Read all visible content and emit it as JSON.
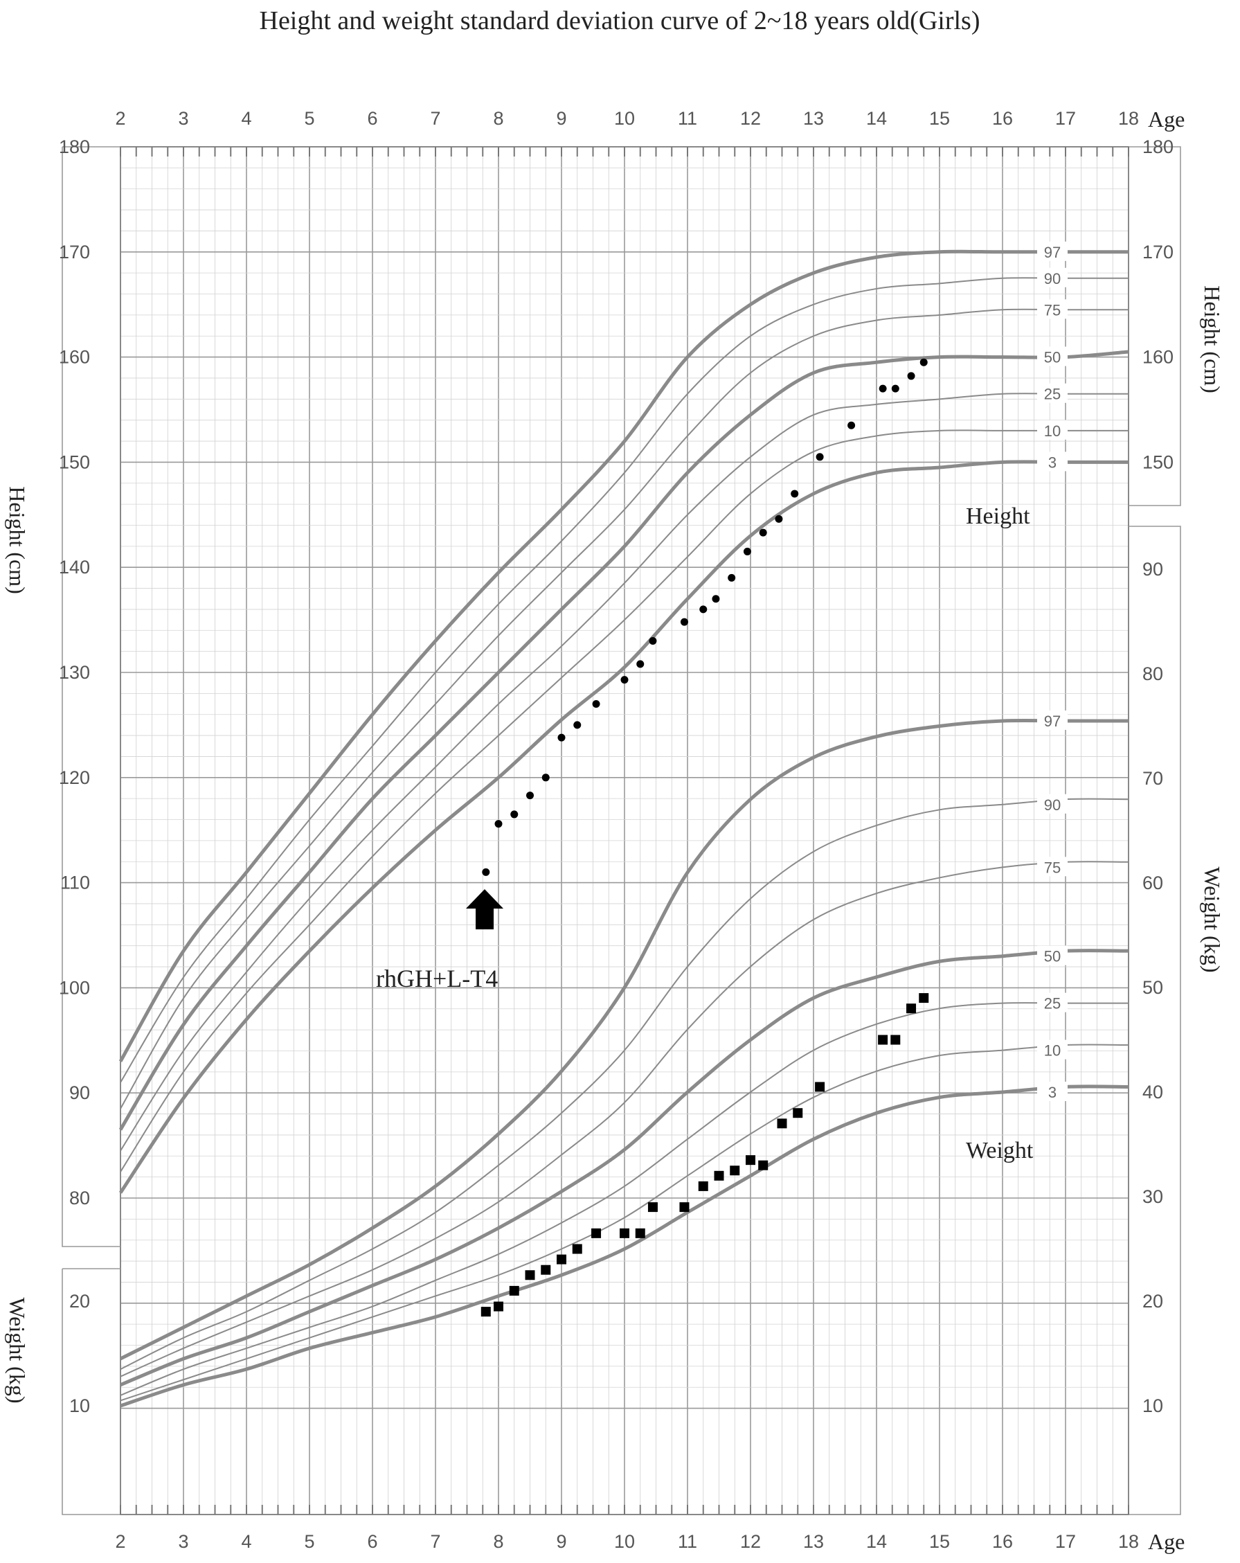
{
  "chart_data": {
    "type": "scatter",
    "title": "Height and weight standard deviation curve of 2~18 years old(Girls)",
    "x_axis": {
      "label": "Age",
      "range": [
        2,
        18
      ],
      "ticks": [
        "2",
        "3",
        "4",
        "5",
        "6",
        "7",
        "8",
        "9",
        "10",
        "11",
        "12",
        "13",
        "14",
        "15",
        "16",
        "17",
        "18"
      ]
    },
    "left_axis_height": {
      "label": "Height (cm)",
      "ticks": [
        "80",
        "90",
        "100",
        "110",
        "120",
        "130",
        "140",
        "150",
        "160",
        "170",
        "180"
      ]
    },
    "left_axis_weight": {
      "label": "Weight (kg)",
      "ticks": [
        "10",
        "20"
      ]
    },
    "right_axis_height": {
      "label": "Height (cm)",
      "ticks": [
        "150",
        "160",
        "170",
        "180"
      ]
    },
    "right_axis_weight": {
      "label": "Weight (kg)",
      "ticks": [
        "10",
        "20",
        "30",
        "40",
        "50",
        "60",
        "70",
        "80",
        "90"
      ]
    },
    "grid": true,
    "section_labels": {
      "height": "Height",
      "weight": "Weight"
    },
    "annotation": {
      "text": "rhGH+L-T4",
      "age": 7.8
    },
    "height_percentiles": [
      {
        "name": "97",
        "ages": [
          2,
          3,
          4,
          5,
          6,
          7,
          8,
          9,
          10,
          11,
          12,
          13,
          14,
          15,
          16,
          17,
          18
        ],
        "values": [
          93,
          103.5,
          111,
          118.5,
          126,
          133,
          139.5,
          145.5,
          152,
          160,
          165,
          168,
          169.5,
          170,
          170,
          170,
          170
        ]
      },
      {
        "name": "90",
        "ages": [
          2,
          3,
          4,
          5,
          6,
          7,
          8,
          9,
          10,
          11,
          12,
          13,
          14,
          15,
          16,
          17,
          18
        ],
        "values": [
          91,
          101,
          108.5,
          116,
          123,
          130,
          136.5,
          142.5,
          149,
          156.5,
          162,
          165,
          166.5,
          167,
          167.5,
          167.5,
          167.5
        ]
      },
      {
        "name": "75",
        "ages": [
          2,
          3,
          4,
          5,
          6,
          7,
          8,
          9,
          10,
          11,
          12,
          13,
          14,
          15,
          16,
          17,
          18
        ],
        "values": [
          88.5,
          99,
          106.5,
          113.5,
          120.5,
          127,
          133.5,
          139.5,
          145.5,
          152.5,
          158.5,
          162,
          163.5,
          164,
          164.5,
          164.5,
          164.5
        ]
      },
      {
        "name": "50",
        "ages": [
          2,
          3,
          4,
          5,
          6,
          7,
          8,
          9,
          10,
          11,
          12,
          13,
          14,
          15,
          16,
          17,
          18
        ],
        "values": [
          86.5,
          96.5,
          104,
          111,
          118,
          124,
          130,
          136,
          142,
          149,
          154.5,
          158.5,
          159.5,
          160,
          160,
          160,
          160.5
        ]
      },
      {
        "name": "25",
        "ages": [
          2,
          3,
          4,
          5,
          6,
          7,
          8,
          9,
          10,
          11,
          12,
          13,
          14,
          15,
          16,
          17,
          18
        ],
        "values": [
          84.5,
          94,
          101.5,
          108.5,
          115,
          121,
          127,
          132.5,
          138.5,
          145,
          150.5,
          154.5,
          155.5,
          156,
          156.5,
          156.5,
          156.5
        ]
      },
      {
        "name": "10",
        "ages": [
          2,
          3,
          4,
          5,
          6,
          7,
          8,
          9,
          10,
          11,
          12,
          13,
          14,
          15,
          16,
          17,
          18
        ],
        "values": [
          82.5,
          92,
          99.5,
          106,
          112.5,
          118.5,
          124,
          129.5,
          135,
          141,
          147,
          151,
          152.5,
          153,
          153,
          153,
          153
        ]
      },
      {
        "name": "3",
        "ages": [
          2,
          3,
          4,
          5,
          6,
          7,
          8,
          9,
          10,
          11,
          12,
          13,
          14,
          15,
          16,
          17,
          18
        ],
        "values": [
          80.5,
          89.5,
          97,
          103.5,
          109.5,
          115,
          120,
          125.5,
          130.5,
          137,
          143,
          147,
          149,
          149.5,
          150,
          150,
          150
        ]
      }
    ],
    "weight_percentiles": [
      {
        "name": "97",
        "ages": [
          2,
          3,
          4,
          5,
          6,
          7,
          8,
          9,
          10,
          11,
          12,
          13,
          14,
          15,
          16,
          17,
          18
        ],
        "values": [
          14.5,
          17.5,
          20.5,
          23.5,
          27,
          31,
          36,
          42,
          50,
          61,
          68,
          72,
          74,
          75,
          75.5,
          75.5,
          75.5
        ]
      },
      {
        "name": "90",
        "ages": [
          2,
          3,
          4,
          5,
          6,
          7,
          8,
          9,
          10,
          11,
          12,
          13,
          14,
          15,
          16,
          17,
          18
        ],
        "values": [
          13.5,
          16.5,
          19,
          22,
          25,
          28.5,
          33,
          38,
          44,
          52,
          58.5,
          63,
          65.5,
          67,
          67.5,
          68,
          68
        ]
      },
      {
        "name": "75",
        "ages": [
          2,
          3,
          4,
          5,
          6,
          7,
          8,
          9,
          10,
          11,
          12,
          13,
          14,
          15,
          16,
          17,
          18
        ],
        "values": [
          12.8,
          15.5,
          18,
          20.5,
          23,
          26,
          29.5,
          34,
          39,
          46,
          52,
          56.5,
          59,
          60.5,
          61.5,
          62,
          62
        ]
      },
      {
        "name": "50",
        "ages": [
          2,
          3,
          4,
          5,
          6,
          7,
          8,
          9,
          10,
          11,
          12,
          13,
          14,
          15,
          16,
          17,
          18
        ],
        "values": [
          12,
          14.5,
          16.5,
          19,
          21.5,
          24,
          27,
          30.5,
          34.5,
          40,
          45,
          49,
          51,
          52.5,
          53,
          53.5,
          53.5
        ]
      },
      {
        "name": "25",
        "ages": [
          2,
          3,
          4,
          5,
          6,
          7,
          8,
          9,
          10,
          11,
          12,
          13,
          14,
          15,
          16,
          17,
          18
        ],
        "values": [
          11,
          13.5,
          15.5,
          17.5,
          19.5,
          22,
          24.5,
          27.5,
          31,
          35.5,
          40,
          44,
          46.5,
          48,
          48.5,
          48.5,
          48.5
        ]
      },
      {
        "name": "10",
        "ages": [
          2,
          3,
          4,
          5,
          6,
          7,
          8,
          9,
          10,
          11,
          12,
          13,
          14,
          15,
          16,
          17,
          18
        ],
        "values": [
          10.5,
          12.5,
          14.5,
          16.5,
          18.5,
          20.5,
          22.5,
          25,
          28,
          32,
          36,
          39.5,
          42,
          43.5,
          44,
          44.5,
          44.5
        ]
      },
      {
        "name": "3",
        "ages": [
          2,
          3,
          4,
          5,
          6,
          7,
          8,
          9,
          10,
          11,
          12,
          13,
          14,
          15,
          16,
          17,
          18
        ],
        "values": [
          10,
          12,
          13.5,
          15.5,
          17,
          18.5,
          20.5,
          22.5,
          25,
          28.5,
          32,
          35.5,
          38,
          39.5,
          40,
          40.5,
          40.5
        ]
      }
    ],
    "patient_height": [
      [
        7.8,
        111
      ],
      [
        8.0,
        115.6
      ],
      [
        8.25,
        116.5
      ],
      [
        8.5,
        118.3
      ],
      [
        8.75,
        120
      ],
      [
        9.0,
        123.8
      ],
      [
        9.25,
        125
      ],
      [
        9.55,
        127
      ],
      [
        10.0,
        129.3
      ],
      [
        10.25,
        130.8
      ],
      [
        10.45,
        133
      ],
      [
        10.95,
        134.8
      ],
      [
        11.25,
        136
      ],
      [
        11.45,
        137
      ],
      [
        11.7,
        139
      ],
      [
        11.95,
        141.5
      ],
      [
        12.2,
        143.3
      ],
      [
        12.45,
        144.6
      ],
      [
        12.7,
        147
      ],
      [
        13.1,
        150.5
      ],
      [
        13.6,
        153.5
      ],
      [
        14.1,
        157
      ],
      [
        14.3,
        157
      ],
      [
        14.55,
        158.2
      ],
      [
        14.75,
        159.5
      ]
    ],
    "patient_weight": [
      [
        7.8,
        19
      ],
      [
        8.0,
        19.5
      ],
      [
        8.25,
        21
      ],
      [
        8.5,
        22.5
      ],
      [
        8.75,
        23
      ],
      [
        9.0,
        24
      ],
      [
        9.25,
        25
      ],
      [
        9.55,
        26.5
      ],
      [
        10.0,
        26.5
      ],
      [
        10.25,
        26.5
      ],
      [
        10.45,
        29
      ],
      [
        10.95,
        29
      ],
      [
        11.25,
        31
      ],
      [
        11.5,
        32
      ],
      [
        11.75,
        32.5
      ],
      [
        12.0,
        33.5
      ],
      [
        12.2,
        33
      ],
      [
        12.5,
        37
      ],
      [
        12.75,
        38
      ],
      [
        13.1,
        40.5
      ],
      [
        14.1,
        45
      ],
      [
        14.3,
        45
      ],
      [
        14.55,
        48
      ],
      [
        14.75,
        49
      ]
    ]
  }
}
